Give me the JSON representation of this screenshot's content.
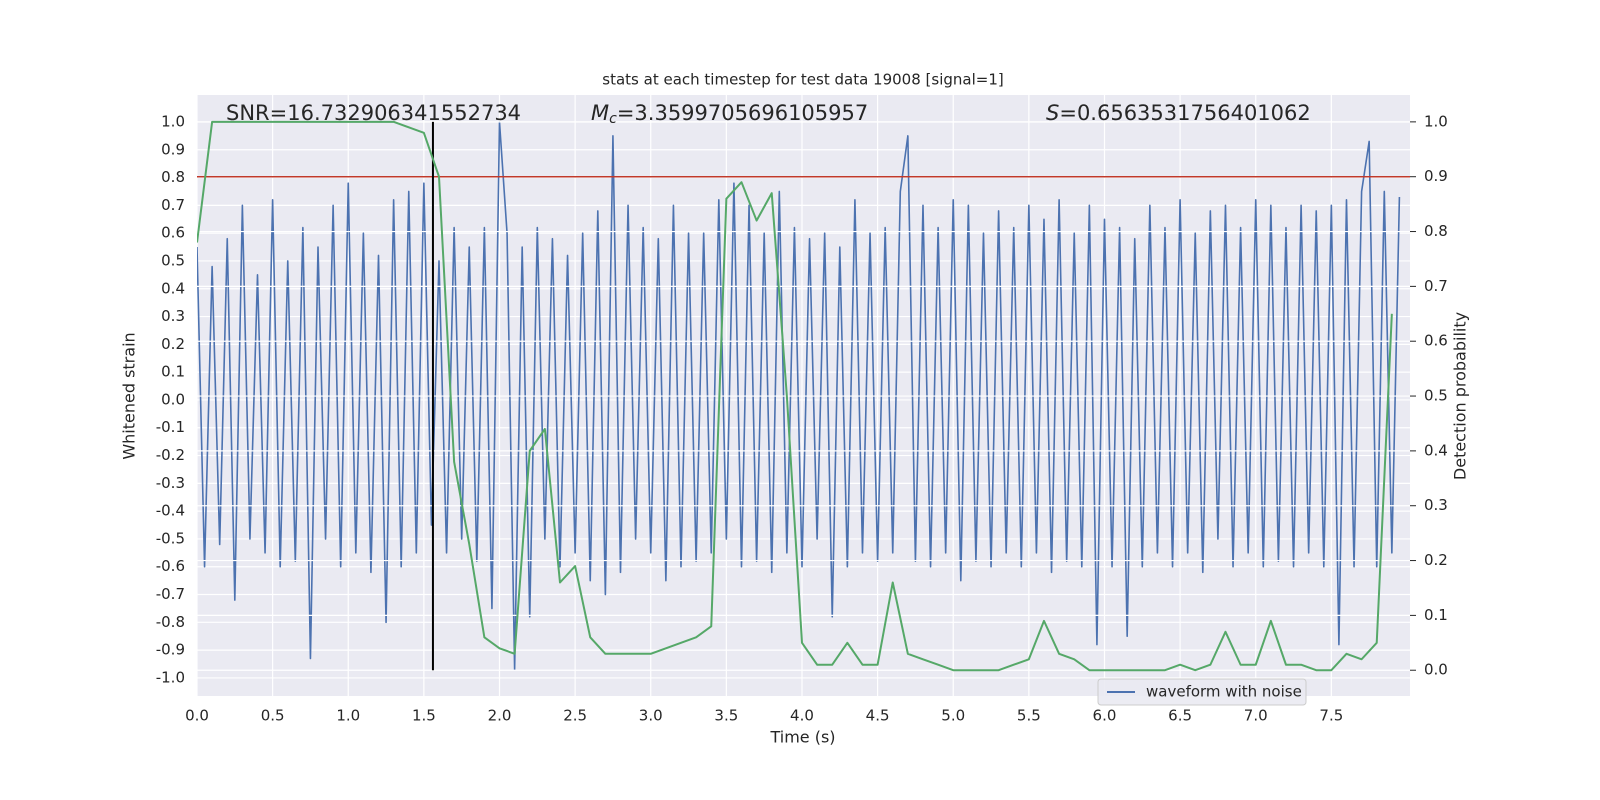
{
  "chart_data": {
    "type": "line",
    "title": "stats at each timestep for test data 19008 [signal=1]",
    "xlabel": "Time (s)",
    "ylabel": "Whitened strain",
    "y2label": "Detection probability",
    "xlim": [
      0,
      8.02
    ],
    "ylim": [
      -1.065,
      1.097
    ],
    "y2lim": [
      -0.047,
      1.049
    ],
    "xticks": [
      {
        "value": 0,
        "label": "0.0"
      },
      0.5,
      {
        "value": 1,
        "label": "1.0"
      },
      1.5,
      {
        "value": 2,
        "label": "2.0"
      },
      2.5,
      {
        "value": 3,
        "label": "3.0"
      },
      3.5,
      {
        "value": 4,
        "label": "4.0"
      },
      4.5,
      {
        "value": 5,
        "label": "5.0"
      },
      5.5,
      {
        "value": 6,
        "label": "6.0"
      },
      6.5,
      {
        "value": 7,
        "label": "7.0"
      },
      7.5
    ],
    "yticks": [
      {
        "value": -1,
        "label": "-1.0"
      },
      -0.9,
      -0.8,
      -0.7,
      -0.6,
      -0.5,
      -0.4,
      -0.3,
      -0.2,
      -0.1,
      {
        "value": 0,
        "label": "0.0"
      },
      0.1,
      0.2,
      0.3,
      0.4,
      0.5,
      0.6,
      0.7,
      0.8,
      0.9,
      {
        "value": 1,
        "label": "1.0"
      }
    ],
    "y2ticks": [
      {
        "value": 0,
        "label": "0.0"
      },
      0.1,
      0.2,
      0.3,
      0.4,
      0.5,
      0.6,
      0.7,
      0.8,
      0.9,
      {
        "value": 1,
        "label": "1.0"
      }
    ],
    "grid": true,
    "legend": "lower right",
    "series": [
      {
        "name": "waveform with noise",
        "color": "#4c72b0",
        "x": [
          0,
          0.05,
          0.1,
          0.15,
          0.2,
          0.25,
          0.3,
          0.35,
          0.4,
          0.45,
          0.5,
          0.55,
          0.6,
          0.65,
          0.7,
          0.75,
          0.8,
          0.85,
          0.9,
          0.95,
          1,
          1.05,
          1.1,
          1.15,
          1.2,
          1.25,
          1.3,
          1.35,
          1.4,
          1.45,
          1.5,
          1.55,
          1.6,
          1.65,
          1.7,
          1.75,
          1.8,
          1.85,
          1.9,
          1.95,
          2,
          2.05,
          2.1,
          2.15,
          2.2,
          2.25,
          2.3,
          2.35,
          2.4,
          2.45,
          2.5,
          2.55,
          2.6,
          2.65,
          2.7,
          2.75,
          2.8,
          2.85,
          2.9,
          2.95,
          3,
          3.05,
          3.1,
          3.15,
          3.2,
          3.25,
          3.3,
          3.35,
          3.4,
          3.45,
          3.5,
          3.55,
          3.6,
          3.65,
          3.7,
          3.75,
          3.8,
          3.85,
          3.9,
          3.95,
          4,
          4.05,
          4.1,
          4.15,
          4.2,
          4.25,
          4.3,
          4.35,
          4.4,
          4.45,
          4.5,
          4.55,
          4.6,
          4.65,
          4.7,
          4.75,
          4.8,
          4.85,
          4.9,
          4.95,
          5,
          5.05,
          5.1,
          5.15,
          5.2,
          5.25,
          5.3,
          5.35,
          5.4,
          5.45,
          5.5,
          5.55,
          5.6,
          5.65,
          5.7,
          5.75,
          5.8,
          5.85,
          5.9,
          5.95,
          6,
          6.05,
          6.1,
          6.15,
          6.2,
          6.25,
          6.3,
          6.35,
          6.4,
          6.45,
          6.5,
          6.55,
          6.6,
          6.65,
          6.7,
          6.75,
          6.8,
          6.85,
          6.9,
          6.95,
          7,
          7.05,
          7.1,
          7.15,
          7.2,
          7.25,
          7.3,
          7.35,
          7.4,
          7.45,
          7.5,
          7.55,
          7.6,
          7.65,
          7.7,
          7.75,
          7.8,
          7.85,
          7.9,
          7.95
        ],
        "values": [
          0.55,
          -0.6,
          0.48,
          -0.52,
          0.58,
          -0.72,
          0.7,
          -0.5,
          0.45,
          -0.55,
          0.72,
          -0.6,
          0.5,
          -0.58,
          0.62,
          -0.93,
          0.55,
          -0.5,
          0.7,
          -0.6,
          0.78,
          -0.55,
          0.6,
          -0.62,
          0.52,
          -0.8,
          0.72,
          -0.6,
          0.75,
          -0.55,
          0.78,
          -0.45,
          0.5,
          -0.55,
          0.62,
          -0.5,
          0.55,
          -0.58,
          0.62,
          -0.75,
          1.0,
          0.6,
          -0.97,
          0.55,
          -0.78,
          0.62,
          -0.5,
          0.58,
          -0.6,
          0.52,
          -0.55,
          0.6,
          -0.65,
          0.68,
          -0.7,
          0.95,
          -0.62,
          0.7,
          -0.5,
          0.62,
          -0.55,
          0.58,
          -0.65,
          0.7,
          -0.6,
          0.6,
          -0.58,
          0.6,
          -0.55,
          0.72,
          -0.5,
          0.78,
          -0.6,
          0.7,
          -0.58,
          0.6,
          -0.62,
          0.75,
          -0.55,
          0.62,
          -0.6,
          0.58,
          -0.5,
          0.6,
          -0.78,
          0.55,
          -0.6,
          0.72,
          -0.55,
          0.6,
          -0.58,
          0.62,
          -0.55,
          0.75,
          0.95,
          -0.58,
          0.7,
          -0.6,
          0.62,
          -0.55,
          0.72,
          -0.65,
          0.7,
          -0.58,
          0.6,
          -0.6,
          0.68,
          -0.55,
          0.62,
          -0.6,
          0.7,
          -0.55,
          0.65,
          -0.62,
          0.72,
          -0.58,
          0.6,
          -0.6,
          0.7,
          -0.88,
          0.65,
          -0.6,
          0.62,
          -0.85,
          0.58,
          -0.6,
          0.7,
          -0.55,
          0.62,
          -0.6,
          0.72,
          -0.55,
          0.6,
          -0.62,
          0.68,
          -0.5,
          0.7,
          -0.6,
          0.62,
          -0.55,
          0.72,
          -0.6,
          0.7,
          -0.58,
          0.62,
          -0.6,
          0.7,
          -0.55,
          0.68,
          -0.6,
          0.7,
          -0.88,
          0.72,
          -0.6,
          0.75,
          0.93,
          -0.6,
          0.75,
          -0.55,
          0.73
        ]
      },
      {
        "color": "#55a868",
        "axis": "y2",
        "x": [
          0,
          0.1,
          0.2,
          0.3,
          0.4,
          0.5,
          0.6,
          0.7,
          0.8,
          0.9,
          1,
          1.1,
          1.2,
          1.3,
          1.4,
          1.5,
          1.6,
          1.7,
          1.8,
          1.9,
          2,
          2.1,
          2.2,
          2.3,
          2.4,
          2.5,
          2.6,
          2.7,
          2.8,
          2.9,
          3,
          3.1,
          3.2,
          3.3,
          3.4,
          3.5,
          3.6,
          3.7,
          3.8,
          3.9,
          4,
          4.1,
          4.2,
          4.3,
          4.4,
          4.5,
          4.6,
          4.7,
          4.8,
          4.9,
          5,
          5.1,
          5.2,
          5.3,
          5.4,
          5.5,
          5.6,
          5.7,
          5.8,
          5.9,
          6,
          6.1,
          6.2,
          6.3,
          6.4,
          6.5,
          6.6,
          6.7,
          6.8,
          6.9,
          7,
          7.1,
          7.2,
          7.3,
          7.4,
          7.5,
          7.6,
          7.7,
          7.8,
          7.9
        ],
        "values": [
          0.78,
          1.0,
          1.0,
          1.0,
          1.0,
          1.0,
          1.0,
          1.0,
          1.0,
          1.0,
          1.0,
          1.0,
          1.0,
          1.0,
          0.99,
          0.98,
          0.9,
          0.38,
          0.23,
          0.06,
          0.04,
          0.03,
          0.4,
          0.44,
          0.16,
          0.19,
          0.06,
          0.03,
          0.03,
          0.03,
          0.03,
          0.04,
          0.05,
          0.06,
          0.08,
          0.86,
          0.89,
          0.82,
          0.87,
          0.5,
          0.05,
          0.01,
          0.01,
          0.05,
          0.01,
          0.01,
          0.16,
          0.03,
          0.02,
          0.01,
          0.0,
          0.0,
          0.0,
          0.0,
          0.01,
          0.02,
          0.09,
          0.03,
          0.02,
          0.0,
          0.0,
          0.0,
          0.0,
          0.0,
          0.0,
          0.01,
          0.0,
          0.01,
          0.07,
          0.01,
          0.01,
          0.09,
          0.01,
          0.01,
          0.0,
          0.0,
          0.03,
          0.02,
          0.05,
          0.65
        ]
      }
    ],
    "hline": {
      "y": 0.9,
      "axis": "y2",
      "color": "#c0392b"
    },
    "vline": {
      "x": 1.56,
      "ymin": 0,
      "ymax": 1,
      "axis": "y2",
      "color": "#000000"
    },
    "annotations": [
      {
        "text": "SNR=16.732906341552734"
      },
      {
        "symbol": "M",
        "subscript": "c",
        "text": "=3.3599705696105957"
      },
      {
        "symbol": "S",
        "text": "=0.6563531756401062"
      }
    ]
  }
}
